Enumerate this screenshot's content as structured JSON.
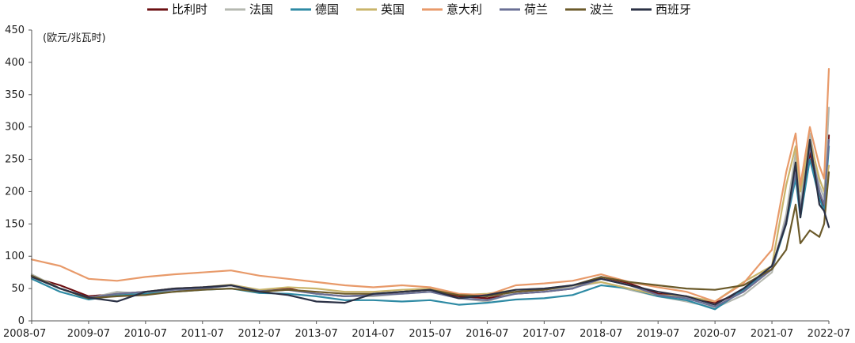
{
  "chart_data": {
    "type": "line",
    "unit_label": "(欧元/兆瓦时)",
    "ylim": [
      0,
      450
    ],
    "y_ticks": [
      0,
      50,
      100,
      150,
      200,
      250,
      300,
      350,
      400,
      450
    ],
    "x_ticks": [
      "2008-07",
      "2009-07",
      "2010-07",
      "2011-07",
      "2012-07",
      "2013-07",
      "2014-07",
      "2015-07",
      "2016-07",
      "2017-07",
      "2018-07",
      "2019-07",
      "2020-07",
      "2021-07",
      "2022-07"
    ],
    "legend_position": "top",
    "grid": false,
    "x_dates": [
      "2008-07",
      "2009-01",
      "2009-07",
      "2010-01",
      "2010-07",
      "2011-01",
      "2011-07",
      "2012-01",
      "2012-07",
      "2013-01",
      "2013-07",
      "2014-01",
      "2014-07",
      "2015-01",
      "2015-07",
      "2016-01",
      "2016-07",
      "2017-01",
      "2017-07",
      "2018-01",
      "2018-07",
      "2019-01",
      "2019-07",
      "2020-01",
      "2020-07",
      "2021-01",
      "2021-07",
      "2021-10",
      "2021-12",
      "2022-01",
      "2022-03",
      "2022-05",
      "2022-06",
      "2022-07"
    ],
    "series": [
      {
        "name": "比利时",
        "color": "#6b0f12",
        "values": [
          68,
          55,
          38,
          42,
          45,
          50,
          52,
          55,
          46,
          50,
          42,
          38,
          40,
          45,
          48,
          38,
          35,
          42,
          45,
          50,
          68,
          58,
          42,
          38,
          28,
          45,
          80,
          160,
          240,
          170,
          260,
          200,
          175,
          287
        ]
      },
      {
        "name": "法国",
        "color": "#b5b8b0",
        "values": [
          72,
          50,
          35,
          45,
          42,
          48,
          50,
          55,
          45,
          48,
          42,
          38,
          38,
          42,
          45,
          35,
          30,
          45,
          48,
          52,
          60,
          48,
          38,
          30,
          20,
          40,
          75,
          165,
          260,
          180,
          290,
          210,
          190,
          330
        ]
      },
      {
        "name": "德国",
        "color": "#2e8aa4",
        "values": [
          65,
          45,
          33,
          40,
          42,
          45,
          48,
          50,
          43,
          42,
          38,
          32,
          32,
          30,
          32,
          25,
          28,
          33,
          35,
          40,
          55,
          50,
          38,
          32,
          18,
          48,
          80,
          150,
          220,
          160,
          250,
          190,
          170,
          270
        ]
      },
      {
        "name": "英国",
        "color": "#c9b46a",
        "values": [
          70,
          50,
          36,
          42,
          45,
          50,
          52,
          56,
          48,
          52,
          50,
          45,
          45,
          48,
          50,
          40,
          42,
          48,
          50,
          55,
          60,
          50,
          40,
          38,
          30,
          60,
          85,
          210,
          270,
          200,
          280,
          220,
          200,
          240
        ]
      },
      {
        "name": "意大利",
        "color": "#e89a6a",
        "values": [
          95,
          85,
          65,
          62,
          68,
          72,
          75,
          78,
          70,
          65,
          60,
          55,
          52,
          55,
          52,
          42,
          40,
          55,
          58,
          62,
          72,
          60,
          52,
          45,
          30,
          58,
          110,
          230,
          290,
          210,
          300,
          240,
          220,
          390
        ]
      },
      {
        "name": "荷兰",
        "color": "#6a6f95",
        "values": [
          70,
          50,
          36,
          42,
          45,
          48,
          50,
          55,
          46,
          48,
          42,
          38,
          40,
          42,
          45,
          35,
          32,
          42,
          45,
          50,
          65,
          55,
          40,
          35,
          22,
          45,
          80,
          155,
          230,
          170,
          270,
          200,
          180,
          280
        ]
      },
      {
        "name": "波兰",
        "color": "#6b5a2a",
        "values": [
          70,
          50,
          35,
          38,
          40,
          45,
          48,
          50,
          45,
          48,
          45,
          42,
          42,
          45,
          48,
          40,
          38,
          45,
          48,
          55,
          68,
          60,
          55,
          50,
          48,
          55,
          80,
          110,
          180,
          120,
          140,
          130,
          150,
          230
        ]
      },
      {
        "name": "西班牙",
        "color": "#2b3145",
        "values": [
          68,
          50,
          36,
          30,
          45,
          50,
          52,
          55,
          45,
          40,
          30,
          28,
          42,
          45,
          48,
          35,
          40,
          48,
          50,
          55,
          65,
          55,
          45,
          38,
          25,
          50,
          85,
          150,
          245,
          160,
          280,
          180,
          170,
          145
        ]
      }
    ]
  }
}
